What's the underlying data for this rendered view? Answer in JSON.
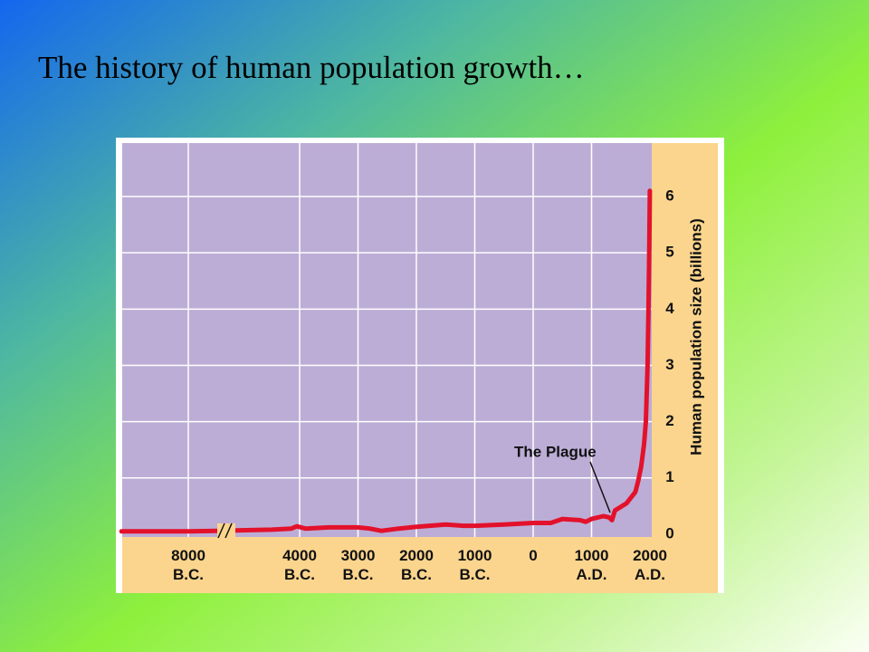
{
  "chart_data": {
    "type": "line",
    "title": "The history of human population growth…",
    "y_label": "Human population size (billions)",
    "annotation": "The Plague",
    "color": "#e3112b",
    "x": [
      -10400,
      -8000,
      -7000,
      -5000,
      -4300,
      -4100,
      -3900,
      -3500,
      -3000,
      -2800,
      -2600,
      -2300,
      -2000,
      -1500,
      -1200,
      -1000,
      -500,
      0,
      300,
      500,
      800,
      900,
      1000,
      1200,
      1300,
      1350,
      1400,
      1600,
      1750,
      1800,
      1850,
      1900,
      1930,
      1960,
      1975,
      1987,
      1999
    ],
    "values": [
      0.05,
      0.05,
      0.06,
      0.08,
      0.1,
      0.14,
      0.1,
      0.12,
      0.12,
      0.1,
      0.06,
      0.1,
      0.13,
      0.17,
      0.15,
      0.15,
      0.17,
      0.2,
      0.2,
      0.27,
      0.25,
      0.22,
      0.27,
      0.32,
      0.3,
      0.25,
      0.42,
      0.55,
      0.75,
      0.95,
      1.2,
      1.6,
      2.0,
      3.0,
      4.0,
      5.0,
      6.1
    ],
    "xlim": [
      -10400,
      2000
    ],
    "xticks": [
      {
        "value": -8000,
        "label": "8000\nB.C."
      },
      {
        "value": -4000,
        "label": "4000\nB.C."
      },
      {
        "value": -3000,
        "label": "3000\nB.C."
      },
      {
        "value": -2000,
        "label": "2000\nB.C."
      },
      {
        "value": -1000,
        "label": "1000\nB.C."
      },
      0,
      {
        "value": 1000,
        "label": "1000\nA.D."
      },
      {
        "value": 2000,
        "label": "2000\nA.D."
      }
    ],
    "ylim": [
      -0.05,
      6.95
    ],
    "yticks": [
      0,
      1,
      2,
      3,
      4,
      5,
      6
    ],
    "grid": true
  }
}
